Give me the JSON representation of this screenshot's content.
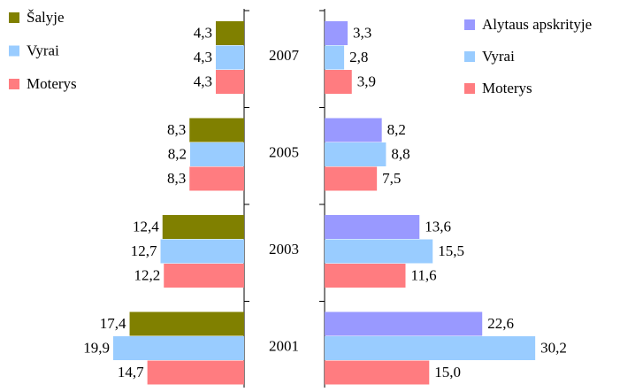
{
  "chart_data": [
    {
      "type": "bar",
      "orientation": "horizontal",
      "direction": "left",
      "categories": [
        "2007",
        "2005",
        "2003",
        "2001"
      ],
      "xlim": [
        0,
        25
      ],
      "legend": "top-left",
      "series": [
        {
          "name": "Šalyje",
          "color": "#808000",
          "values": [
            4.3,
            8.3,
            12.4,
            17.4
          ],
          "value_labels": [
            "4,3",
            "8,3",
            "12,4",
            "17,4"
          ]
        },
        {
          "name": "Vyrai",
          "color": "#99ccff",
          "values": [
            4.3,
            8.2,
            12.7,
            19.9
          ],
          "value_labels": [
            "4,3",
            "8,2",
            "12,7",
            "19,9"
          ]
        },
        {
          "name": "Moterys",
          "color": "#ff7c80",
          "values": [
            4.3,
            8.3,
            12.2,
            14.7
          ],
          "value_labels": [
            "4,3",
            "8,3",
            "12,2",
            "14,7"
          ]
        }
      ]
    },
    {
      "type": "bar",
      "orientation": "horizontal",
      "direction": "right",
      "xlim": [
        0,
        35
      ],
      "legend": "top-right",
      "series": [
        {
          "name": "Alytaus apskrityje",
          "color": "#9999ff",
          "values": [
            3.3,
            8.2,
            13.6,
            22.6
          ],
          "value_labels": [
            "3,3",
            "8,2",
            "13,6",
            "22,6"
          ]
        },
        {
          "name": "Vyrai",
          "color": "#99ccff",
          "values": [
            2.8,
            8.8,
            15.5,
            30.2
          ],
          "value_labels": [
            "2,8",
            "8,8",
            "15,5",
            "30,2"
          ]
        },
        {
          "name": "Moterys",
          "color": "#ff7c80",
          "values": [
            3.9,
            7.5,
            11.6,
            15.0
          ],
          "value_labels": [
            "3,9",
            "7,5",
            "11,6",
            "15,0"
          ]
        }
      ]
    }
  ]
}
